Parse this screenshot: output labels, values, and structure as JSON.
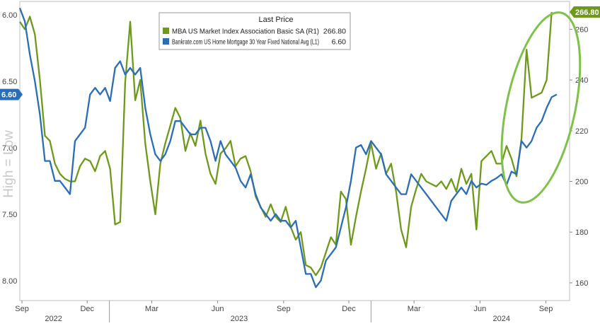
{
  "chart_data": {
    "type": "line",
    "title": "",
    "legend": {
      "title": "Last Price",
      "placement": "top-center",
      "entries": [
        {
          "label": "MBA US Market Index Association Basic SA  (R1)",
          "value": "266.80",
          "color": "#6e9a1b"
        },
        {
          "label": "Bankrate.com US Home Mortgage 30 Year Fixed National Avg  (L1)",
          "value": "6.60",
          "color": "#2a6db8"
        }
      ]
    },
    "left_axis": {
      "label": "High = Low",
      "inverted": true,
      "range": [
        5.9,
        8.15
      ],
      "ticks": [
        6.0,
        6.5,
        7.0,
        7.5,
        8.0
      ],
      "tick_labels": [
        "6.00",
        "6.50",
        "7.00",
        "7.50",
        "8.00"
      ],
      "badge": "6.60"
    },
    "right_axis": {
      "range": [
        153,
        271
      ],
      "ticks": [
        160,
        180,
        200,
        220,
        240,
        260
      ],
      "tick_labels": [
        "160",
        "180",
        "200",
        "220",
        "240",
        "260"
      ],
      "badge": "266.80"
    },
    "x_axis": {
      "range": [
        "2022-08-29",
        "2024-10-04"
      ],
      "month_ticks": [
        {
          "date": "2022-09-01",
          "label": "Sep"
        },
        {
          "date": "2022-12-01",
          "label": "Dec"
        },
        {
          "date": "2023-03-01",
          "label": "Mar"
        },
        {
          "date": "2023-06-01",
          "label": "Jun"
        },
        {
          "date": "2023-09-01",
          "label": "Sep"
        },
        {
          "date": "2023-12-01",
          "label": "Dec"
        },
        {
          "date": "2024-03-01",
          "label": "Mar"
        },
        {
          "date": "2024-06-01",
          "label": "Jun"
        },
        {
          "date": "2024-09-01",
          "label": "Sep"
        }
      ],
      "year_labels": [
        {
          "date": "2022-10-15",
          "label": "2022"
        },
        {
          "date": "2023-07-01",
          "label": "2023"
        },
        {
          "date": "2024-07-01",
          "label": "2024"
        }
      ],
      "year_dividers": [
        "2023-01-01",
        "2024-01-01"
      ]
    },
    "grid": "dashed",
    "annotation": {
      "type": "ellipse",
      "around": "2024-07 to 2024-09",
      "color": "#7ec24a"
    },
    "series": [
      {
        "name": "MBA US Market Index Association Basic SA  (R1)",
        "axis": "right",
        "color": "#6e9a1b",
        "points": [
          [
            "2022-08-29",
            263
          ],
          [
            "2022-09-05",
            260
          ],
          [
            "2022-09-12",
            265
          ],
          [
            "2022-09-19",
            258
          ],
          [
            "2022-09-26",
            240
          ],
          [
            "2022-10-03",
            218
          ],
          [
            "2022-10-10",
            216
          ],
          [
            "2022-10-17",
            207
          ],
          [
            "2022-10-24",
            203
          ],
          [
            "2022-10-31",
            201
          ],
          [
            "2022-11-07",
            200
          ],
          [
            "2022-11-14",
            200
          ],
          [
            "2022-11-21",
            206
          ],
          [
            "2022-11-28",
            209
          ],
          [
            "2022-12-05",
            208
          ],
          [
            "2022-12-12",
            204
          ],
          [
            "2022-12-19",
            210
          ],
          [
            "2022-12-26",
            212
          ],
          [
            "2023-01-02",
            205
          ],
          [
            "2023-01-09",
            183
          ],
          [
            "2023-01-16",
            184
          ],
          [
            "2023-01-23",
            239
          ],
          [
            "2023-01-30",
            263
          ],
          [
            "2023-02-06",
            232
          ],
          [
            "2023-02-13",
            240
          ],
          [
            "2023-02-20",
            215
          ],
          [
            "2023-02-27",
            200
          ],
          [
            "2023-03-06",
            187
          ],
          [
            "2023-03-13",
            207
          ],
          [
            "2023-03-20",
            215
          ],
          [
            "2023-03-27",
            222
          ],
          [
            "2023-04-03",
            229
          ],
          [
            "2023-04-10",
            225
          ],
          [
            "2023-04-17",
            212
          ],
          [
            "2023-04-24",
            219
          ],
          [
            "2023-05-01",
            214
          ],
          [
            "2023-05-08",
            224
          ],
          [
            "2023-05-15",
            211
          ],
          [
            "2023-05-22",
            203
          ],
          [
            "2023-05-29",
            199
          ],
          [
            "2023-06-05",
            211
          ],
          [
            "2023-06-12",
            213
          ],
          [
            "2023-06-19",
            216
          ],
          [
            "2023-06-26",
            206
          ],
          [
            "2023-07-03",
            209
          ],
          [
            "2023-07-10",
            210
          ],
          [
            "2023-07-17",
            204
          ],
          [
            "2023-07-24",
            194
          ],
          [
            "2023-07-31",
            190
          ],
          [
            "2023-08-07",
            186
          ],
          [
            "2023-08-14",
            191
          ],
          [
            "2023-08-21",
            186
          ],
          [
            "2023-08-28",
            184
          ],
          [
            "2023-09-04",
            190
          ],
          [
            "2023-09-11",
            182
          ],
          [
            "2023-09-18",
            177
          ],
          [
            "2023-09-25",
            180
          ],
          [
            "2023-10-02",
            167
          ],
          [
            "2023-10-09",
            166
          ],
          [
            "2023-10-16",
            163
          ],
          [
            "2023-10-23",
            166
          ],
          [
            "2023-10-30",
            172
          ],
          [
            "2023-11-06",
            178
          ],
          [
            "2023-11-13",
            175
          ],
          [
            "2023-11-20",
            196
          ],
          [
            "2023-11-27",
            193
          ],
          [
            "2023-12-04",
            175
          ],
          [
            "2023-12-11",
            186
          ],
          [
            "2023-12-18",
            196
          ],
          [
            "2023-12-25",
            205
          ],
          [
            "2024-01-01",
            215
          ],
          [
            "2024-01-08",
            205
          ],
          [
            "2024-01-15",
            211
          ],
          [
            "2024-01-22",
            203
          ],
          [
            "2024-01-29",
            207
          ],
          [
            "2024-02-05",
            196
          ],
          [
            "2024-02-12",
            181
          ],
          [
            "2024-02-19",
            174
          ],
          [
            "2024-02-26",
            190
          ],
          [
            "2024-03-04",
            197
          ],
          [
            "2024-03-11",
            203
          ],
          [
            "2024-03-18",
            200
          ],
          [
            "2024-03-25",
            199
          ],
          [
            "2024-04-01",
            198
          ],
          [
            "2024-04-08",
            200
          ],
          [
            "2024-04-15",
            197
          ],
          [
            "2024-04-22",
            201
          ],
          [
            "2024-04-29",
            196
          ],
          [
            "2024-05-06",
            205
          ],
          [
            "2024-05-13",
            199
          ],
          [
            "2024-05-20",
            203
          ],
          [
            "2024-05-27",
            181
          ],
          [
            "2024-06-03",
            208
          ],
          [
            "2024-06-10",
            210
          ],
          [
            "2024-06-17",
            212
          ],
          [
            "2024-06-24",
            207
          ],
          [
            "2024-07-01",
            207
          ],
          [
            "2024-07-08",
            214
          ],
          [
            "2024-07-15",
            209
          ],
          [
            "2024-07-22",
            202
          ],
          [
            "2024-07-29",
            217
          ],
          [
            "2024-08-05",
            252
          ],
          [
            "2024-08-12",
            233
          ],
          [
            "2024-08-19",
            234
          ],
          [
            "2024-08-26",
            235
          ],
          [
            "2024-09-02",
            240
          ],
          [
            "2024-09-09",
            266.8
          ]
        ]
      },
      {
        "name": "Bankrate.com US Home Mortgage 30 Year Fixed National Avg  (L1)",
        "axis": "left",
        "color": "#2a6db8",
        "points": [
          [
            "2022-08-29",
            5.95
          ],
          [
            "2022-09-05",
            6.05
          ],
          [
            "2022-09-12",
            6.3
          ],
          [
            "2022-09-19",
            6.5
          ],
          [
            "2022-09-26",
            6.75
          ],
          [
            "2022-10-03",
            7.1
          ],
          [
            "2022-10-10",
            7.1
          ],
          [
            "2022-10-17",
            7.25
          ],
          [
            "2022-10-24",
            7.25
          ],
          [
            "2022-10-31",
            7.3
          ],
          [
            "2022-11-07",
            7.35
          ],
          [
            "2022-11-14",
            6.95
          ],
          [
            "2022-11-21",
            6.9
          ],
          [
            "2022-11-28",
            6.85
          ],
          [
            "2022-12-05",
            6.6
          ],
          [
            "2022-12-12",
            6.55
          ],
          [
            "2022-12-19",
            6.6
          ],
          [
            "2022-12-26",
            6.55
          ],
          [
            "2023-01-02",
            6.65
          ],
          [
            "2023-01-09",
            6.4
          ],
          [
            "2023-01-16",
            6.35
          ],
          [
            "2023-01-23",
            6.45
          ],
          [
            "2023-01-30",
            6.4
          ],
          [
            "2023-02-06",
            6.45
          ],
          [
            "2023-02-13",
            6.4
          ],
          [
            "2023-02-20",
            6.7
          ],
          [
            "2023-02-27",
            6.9
          ],
          [
            "2023-03-06",
            7.05
          ],
          [
            "2023-03-13",
            7.1
          ],
          [
            "2023-03-20",
            7.05
          ],
          [
            "2023-03-27",
            6.95
          ],
          [
            "2023-04-03",
            6.8
          ],
          [
            "2023-04-10",
            6.8
          ],
          [
            "2023-04-17",
            6.85
          ],
          [
            "2023-04-24",
            6.9
          ],
          [
            "2023-05-01",
            6.9
          ],
          [
            "2023-05-08",
            6.85
          ],
          [
            "2023-05-15",
            6.85
          ],
          [
            "2023-05-22",
            6.95
          ],
          [
            "2023-05-29",
            7.1
          ],
          [
            "2023-06-05",
            6.95
          ],
          [
            "2023-06-12",
            7.05
          ],
          [
            "2023-06-19",
            7.1
          ],
          [
            "2023-06-26",
            7.15
          ],
          [
            "2023-07-03",
            7.25
          ],
          [
            "2023-07-10",
            7.3
          ],
          [
            "2023-07-17",
            7.2
          ],
          [
            "2023-07-24",
            7.35
          ],
          [
            "2023-07-31",
            7.45
          ],
          [
            "2023-08-07",
            7.5
          ],
          [
            "2023-08-14",
            7.55
          ],
          [
            "2023-08-21",
            7.5
          ],
          [
            "2023-08-28",
            7.55
          ],
          [
            "2023-09-04",
            7.55
          ],
          [
            "2023-09-11",
            7.6
          ],
          [
            "2023-09-18",
            7.55
          ],
          [
            "2023-09-25",
            7.75
          ],
          [
            "2023-10-02",
            7.95
          ],
          [
            "2023-10-09",
            7.95
          ],
          [
            "2023-10-16",
            8.05
          ],
          [
            "2023-10-23",
            8.0
          ],
          [
            "2023-10-30",
            7.85
          ],
          [
            "2023-11-06",
            7.8
          ],
          [
            "2023-11-13",
            7.75
          ],
          [
            "2023-11-20",
            7.6
          ],
          [
            "2023-11-27",
            7.45
          ],
          [
            "2023-12-04",
            7.25
          ],
          [
            "2023-12-11",
            7.0
          ],
          [
            "2023-12-18",
            6.98
          ],
          [
            "2023-12-25",
            7.05
          ],
          [
            "2024-01-01",
            6.95
          ],
          [
            "2024-01-08",
            7.0
          ],
          [
            "2024-01-15",
            7.05
          ],
          [
            "2024-01-22",
            7.2
          ],
          [
            "2024-01-29",
            7.25
          ],
          [
            "2024-02-05",
            7.3
          ],
          [
            "2024-02-12",
            7.35
          ],
          [
            "2024-02-19",
            7.35
          ],
          [
            "2024-02-26",
            7.2
          ],
          [
            "2024-03-04",
            7.25
          ],
          [
            "2024-03-11",
            7.3
          ],
          [
            "2024-03-18",
            7.35
          ],
          [
            "2024-03-25",
            7.4
          ],
          [
            "2024-04-01",
            7.45
          ],
          [
            "2024-04-08",
            7.5
          ],
          [
            "2024-04-15",
            7.55
          ],
          [
            "2024-04-22",
            7.4
          ],
          [
            "2024-04-29",
            7.35
          ],
          [
            "2024-05-06",
            7.3
          ],
          [
            "2024-05-13",
            7.35
          ],
          [
            "2024-05-20",
            7.25
          ],
          [
            "2024-05-27",
            7.3
          ],
          [
            "2024-06-03",
            7.27
          ],
          [
            "2024-06-10",
            7.28
          ],
          [
            "2024-06-17",
            7.25
          ],
          [
            "2024-06-24",
            7.23
          ],
          [
            "2024-07-01",
            7.2
          ],
          [
            "2024-07-08",
            7.28
          ],
          [
            "2024-07-15",
            7.18
          ],
          [
            "2024-07-22",
            7.2
          ],
          [
            "2024-07-29",
            6.95
          ],
          [
            "2024-08-05",
            7.0
          ],
          [
            "2024-08-12",
            6.95
          ],
          [
            "2024-08-19",
            6.85
          ],
          [
            "2024-08-26",
            6.8
          ],
          [
            "2024-09-02",
            6.7
          ],
          [
            "2024-09-09",
            6.62
          ],
          [
            "2024-09-16",
            6.6
          ]
        ]
      }
    ]
  }
}
